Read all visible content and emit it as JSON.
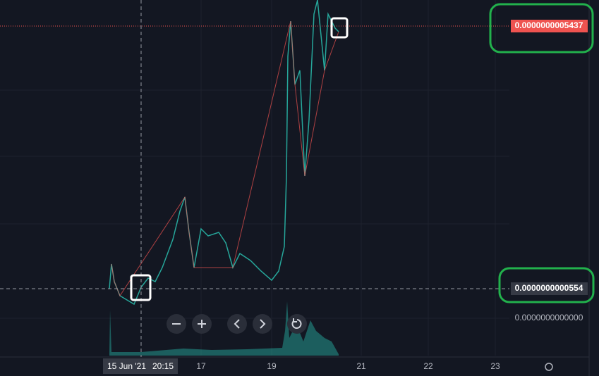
{
  "price_axis": {
    "current_price": "0.0000000005437",
    "crosshair_price": "0.0000000000554",
    "base_price": "0.0000000000000"
  },
  "time_axis": {
    "labels": [
      "17",
      "19",
      "21",
      "22",
      "23"
    ],
    "crosshair_date": "15 Jun '21",
    "crosshair_time": "20:15"
  }
}
